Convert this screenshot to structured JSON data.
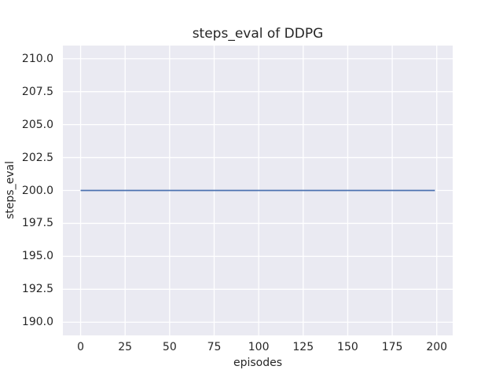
{
  "figure": {
    "background": "#ffffff",
    "plot_background": "#eaeaf2",
    "grid_color": "#ffffff",
    "text_color": "#262626"
  },
  "chart_data": {
    "type": "line",
    "title": "steps_eval of DDPG",
    "xlabel": "episodes",
    "ylabel": "steps_eval",
    "xlim": [
      -9.95,
      208.95
    ],
    "ylim": [
      189.0,
      211.0
    ],
    "grid": true,
    "x_ticks": [
      {
        "v": 0,
        "label": "0"
      },
      {
        "v": 25,
        "label": "25"
      },
      {
        "v": 50,
        "label": "50"
      },
      {
        "v": 75,
        "label": "75"
      },
      {
        "v": 100,
        "label": "100"
      },
      {
        "v": 125,
        "label": "125"
      },
      {
        "v": 150,
        "label": "150"
      },
      {
        "v": 175,
        "label": "175"
      },
      {
        "v": 200,
        "label": "200"
      }
    ],
    "y_ticks": [
      {
        "v": 190.0,
        "label": "190.0"
      },
      {
        "v": 192.5,
        "label": "192.5"
      },
      {
        "v": 195.0,
        "label": "195.0"
      },
      {
        "v": 197.5,
        "label": "197.5"
      },
      {
        "v": 200.0,
        "label": "200.0"
      },
      {
        "v": 202.5,
        "label": "202.5"
      },
      {
        "v": 205.0,
        "label": "205.0"
      },
      {
        "v": 207.5,
        "label": "207.5"
      },
      {
        "v": 210.0,
        "label": "210.0"
      }
    ],
    "series": [
      {
        "name": "steps_eval",
        "color": "#4c72b0",
        "line_width": 1.8,
        "x": [
          0,
          199
        ],
        "y": [
          200,
          200
        ]
      }
    ]
  }
}
